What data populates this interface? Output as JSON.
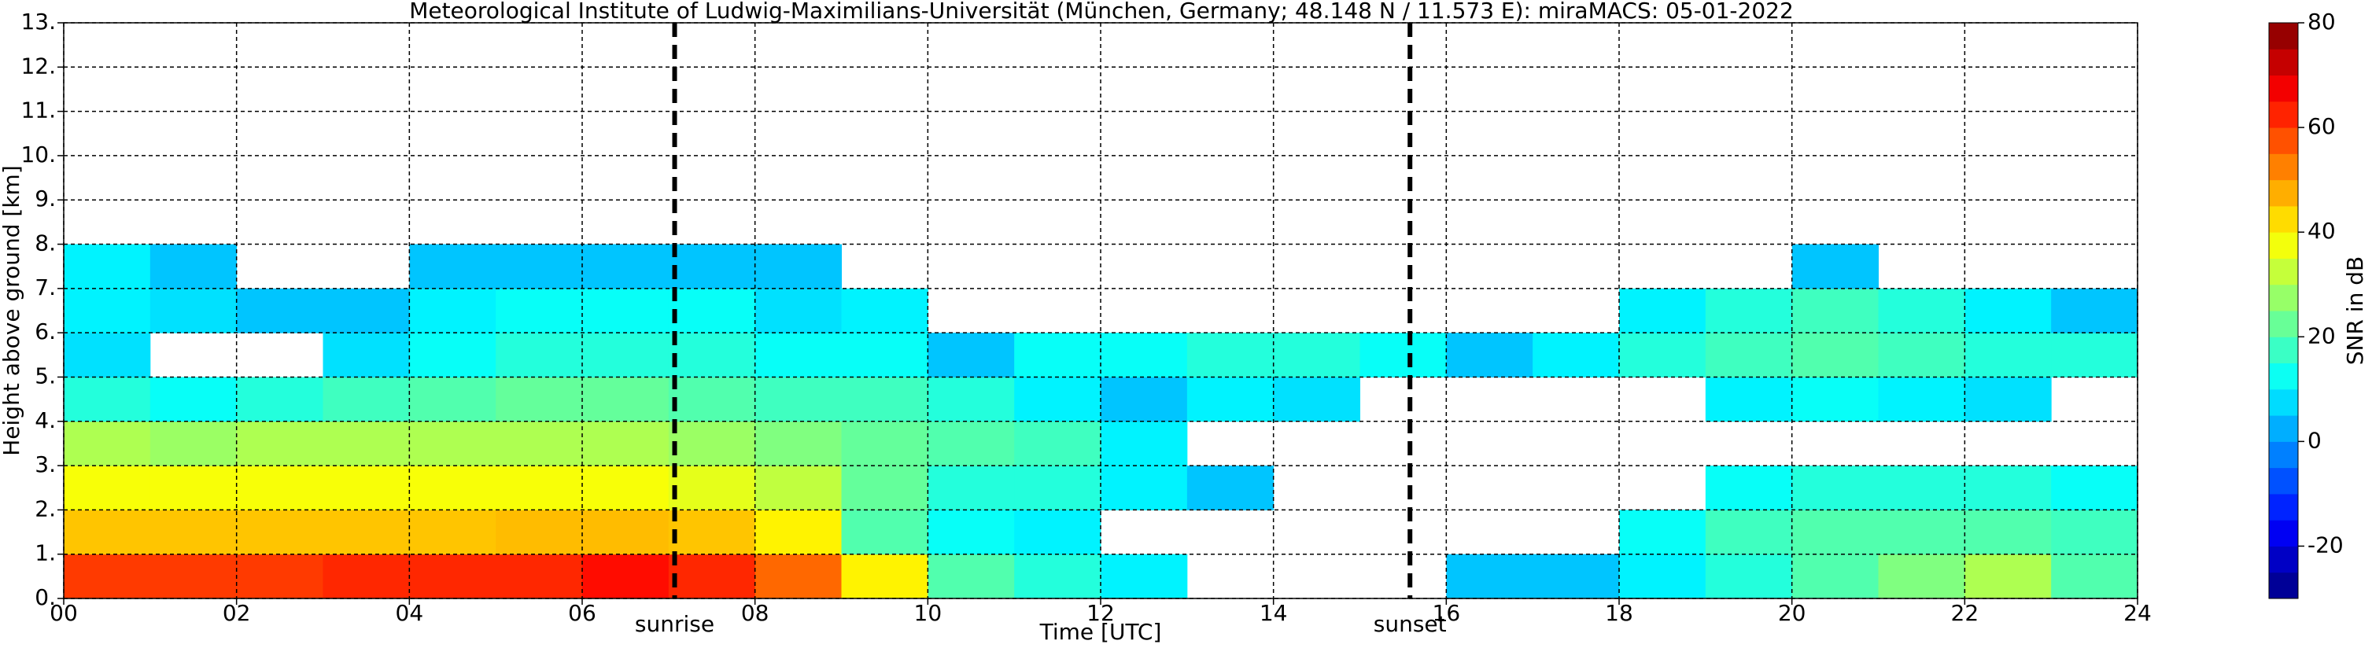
{
  "chart_data": {
    "type": "heatmap",
    "title": "Meteorological Institute of Ludwig-Maximilians-Universität (München, Germany; 48.148 N / 11.573 E):    miraMACS: 05-01-2022",
    "x_label": "Time [UTC]",
    "y_label": "Height above ground [km]",
    "colorbar_label": "SNR in dB",
    "colormap": "jet",
    "xlim": [
      0,
      24
    ],
    "ylim": [
      0,
      13
    ],
    "clim": [
      -30,
      80
    ],
    "xticks": [
      {
        "value": 0,
        "label": "00"
      },
      {
        "value": 2,
        "label": "02"
      },
      {
        "value": 4,
        "label": "04"
      },
      {
        "value": 6,
        "label": "06"
      },
      {
        "value": 8,
        "label": "08"
      },
      {
        "value": 10,
        "label": "10"
      },
      {
        "value": 12,
        "label": "12"
      },
      {
        "value": 14,
        "label": "14"
      },
      {
        "value": 16,
        "label": "16"
      },
      {
        "value": 18,
        "label": "18"
      },
      {
        "value": 20,
        "label": "20"
      },
      {
        "value": 22,
        "label": "22"
      },
      {
        "value": 24,
        "label": "24"
      }
    ],
    "yticks": [
      {
        "value": 0,
        "label": "0."
      },
      {
        "value": 1,
        "label": "1."
      },
      {
        "value": 2,
        "label": "2."
      },
      {
        "value": 3,
        "label": "3."
      },
      {
        "value": 4,
        "label": "4."
      },
      {
        "value": 5,
        "label": "5."
      },
      {
        "value": 6,
        "label": "6."
      },
      {
        "value": 7,
        "label": "7."
      },
      {
        "value": 8,
        "label": "8."
      },
      {
        "value": 9,
        "label": "9."
      },
      {
        "value": 10,
        "label": "10."
      },
      {
        "value": 11,
        "label": "11."
      },
      {
        "value": 12,
        "label": "12."
      },
      {
        "value": 13,
        "label": "13."
      }
    ],
    "cticks": [
      -20,
      0,
      20,
      40,
      60,
      80
    ],
    "grid": true,
    "events": [
      {
        "name": "sunrise",
        "time": 7.07
      },
      {
        "name": "sunset",
        "time": 15.58
      }
    ],
    "x_bins": [
      0,
      1,
      2,
      3,
      4,
      5,
      6,
      7,
      8,
      9,
      10,
      11,
      12,
      13,
      14,
      15,
      16,
      17,
      18,
      19,
      20,
      21,
      22,
      23,
      24
    ],
    "y_bins": [
      0,
      1,
      2,
      3,
      4,
      5,
      6,
      7,
      8
    ],
    "values": [
      [
        60,
        45,
        38,
        30,
        15,
        8,
        10,
        10
      ],
      [
        60,
        45,
        38,
        28,
        12,
        null,
        8,
        5
      ],
      [
        60,
        45,
        38,
        30,
        15,
        null,
        5,
        null
      ],
      [
        62,
        45,
        38,
        30,
        18,
        8,
        5,
        null
      ],
      [
        62,
        45,
        38,
        30,
        20,
        12,
        10,
        5
      ],
      [
        62,
        46,
        38,
        30,
        22,
        15,
        12,
        5
      ],
      [
        65,
        46,
        38,
        30,
        22,
        15,
        12,
        5
      ],
      [
        62,
        45,
        36,
        28,
        20,
        15,
        12,
        5
      ],
      [
        55,
        40,
        32,
        25,
        18,
        12,
        8,
        5
      ],
      [
        40,
        20,
        22,
        22,
        18,
        12,
        10,
        null
      ],
      [
        20,
        12,
        15,
        20,
        15,
        5,
        null,
        null
      ],
      [
        15,
        10,
        15,
        18,
        10,
        12,
        null,
        null
      ],
      [
        10,
        null,
        10,
        10,
        5,
        12,
        null,
        null
      ],
      [
        null,
        null,
        5,
        null,
        10,
        15,
        null,
        null
      ],
      [
        null,
        null,
        null,
        null,
        8,
        15,
        null,
        null
      ],
      [
        null,
        null,
        null,
        null,
        null,
        12,
        null,
        null
      ],
      [
        5,
        null,
        null,
        null,
        null,
        5,
        null,
        null
      ],
      [
        5,
        null,
        null,
        null,
        null,
        10,
        null,
        null
      ],
      [
        10,
        12,
        null,
        null,
        null,
        15,
        10,
        null
      ],
      [
        15,
        18,
        12,
        null,
        10,
        18,
        15,
        null
      ],
      [
        20,
        20,
        15,
        null,
        12,
        20,
        18,
        5
      ],
      [
        25,
        20,
        15,
        null,
        10,
        18,
        15,
        null
      ],
      [
        30,
        20,
        15,
        null,
        8,
        15,
        10,
        null
      ],
      [
        20,
        18,
        12,
        null,
        null,
        15,
        5,
        null
      ]
    ]
  }
}
